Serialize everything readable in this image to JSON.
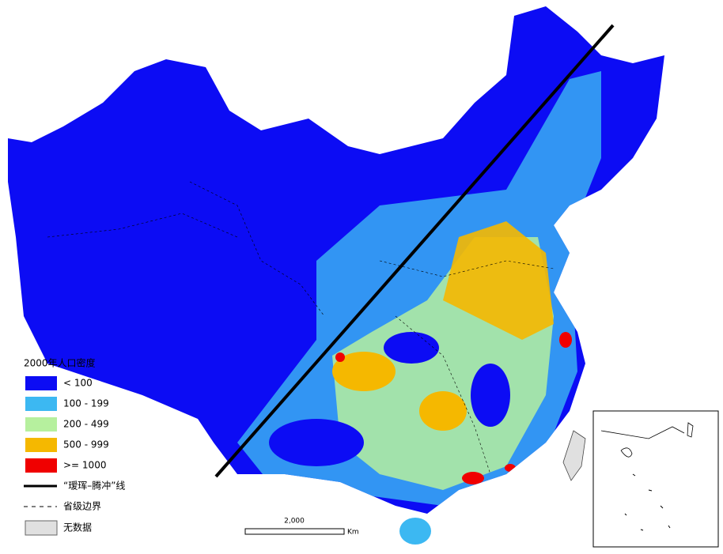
{
  "legend": {
    "title": "2000年人口密度",
    "classes": [
      {
        "label": "< 100",
        "color": "#0c0cf4"
      },
      {
        "label": "100 - 199",
        "color": "#3cb8f2"
      },
      {
        "label": "200 - 499",
        "color": "#b6f09e"
      },
      {
        "label": "500 - 999",
        "color": "#f5b800"
      },
      {
        "label": ">= 1000",
        "color": "#f00000"
      }
    ],
    "line_label": "“瑷珲–腾冲”线",
    "boundary_label": "省级边界",
    "no_data_label": "无数据",
    "no_data_color": "#e0e0e0"
  },
  "scale_bar": {
    "label": "2,000",
    "unit": "Km"
  }
}
